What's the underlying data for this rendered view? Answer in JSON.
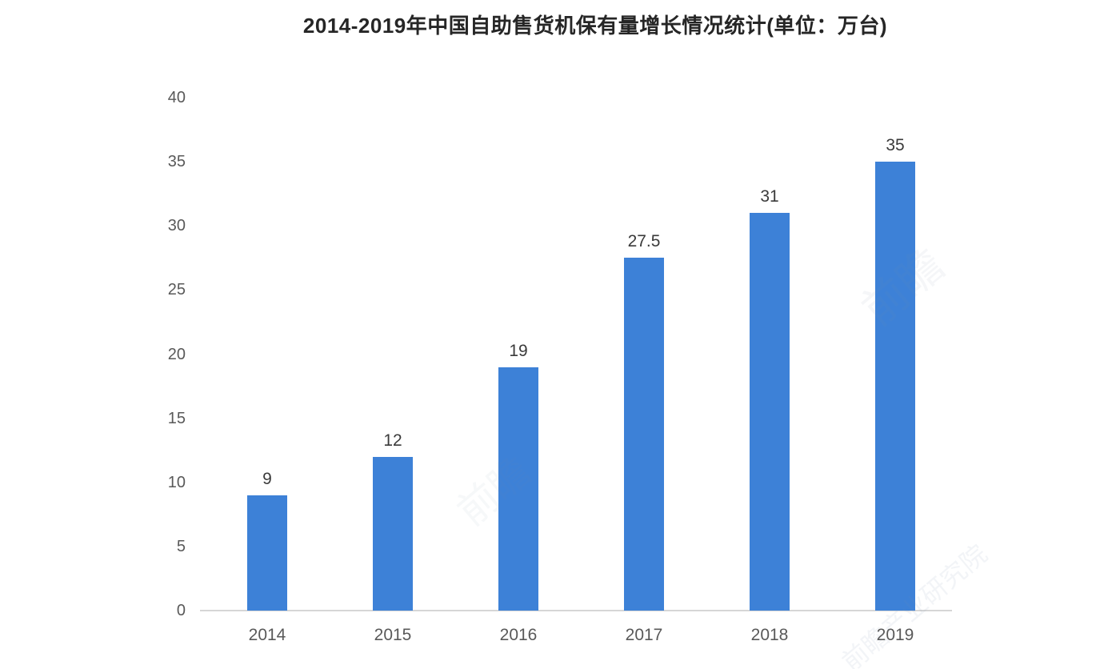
{
  "chart_data": {
    "type": "bar",
    "title": "2014-2019年中国自助售货机保有量增长情况统计(单位：万台)",
    "categories": [
      "2014",
      "2015",
      "2016",
      "2017",
      "2018",
      "2019"
    ],
    "values": [
      9,
      12,
      19,
      27.5,
      31,
      35
    ],
    "value_labels": [
      "9",
      "12",
      "19",
      "27.5",
      "31",
      "35"
    ],
    "xlabel": "",
    "ylabel": "",
    "ylim": [
      0,
      40
    ],
    "yticks": [
      0,
      5,
      10,
      15,
      20,
      25,
      30,
      35,
      40
    ],
    "grid": false,
    "legend": false,
    "bar_color": "#3d81d7",
    "value_label_color": "#3a3a3a",
    "tick_label_color": "#595959",
    "axis_line_color": "#d6d6d6",
    "title_color": "#262626",
    "background_color": "#ffffff"
  },
  "watermarks": [
    "前瞻",
    "前瞻",
    "前瞻产业研究院"
  ]
}
